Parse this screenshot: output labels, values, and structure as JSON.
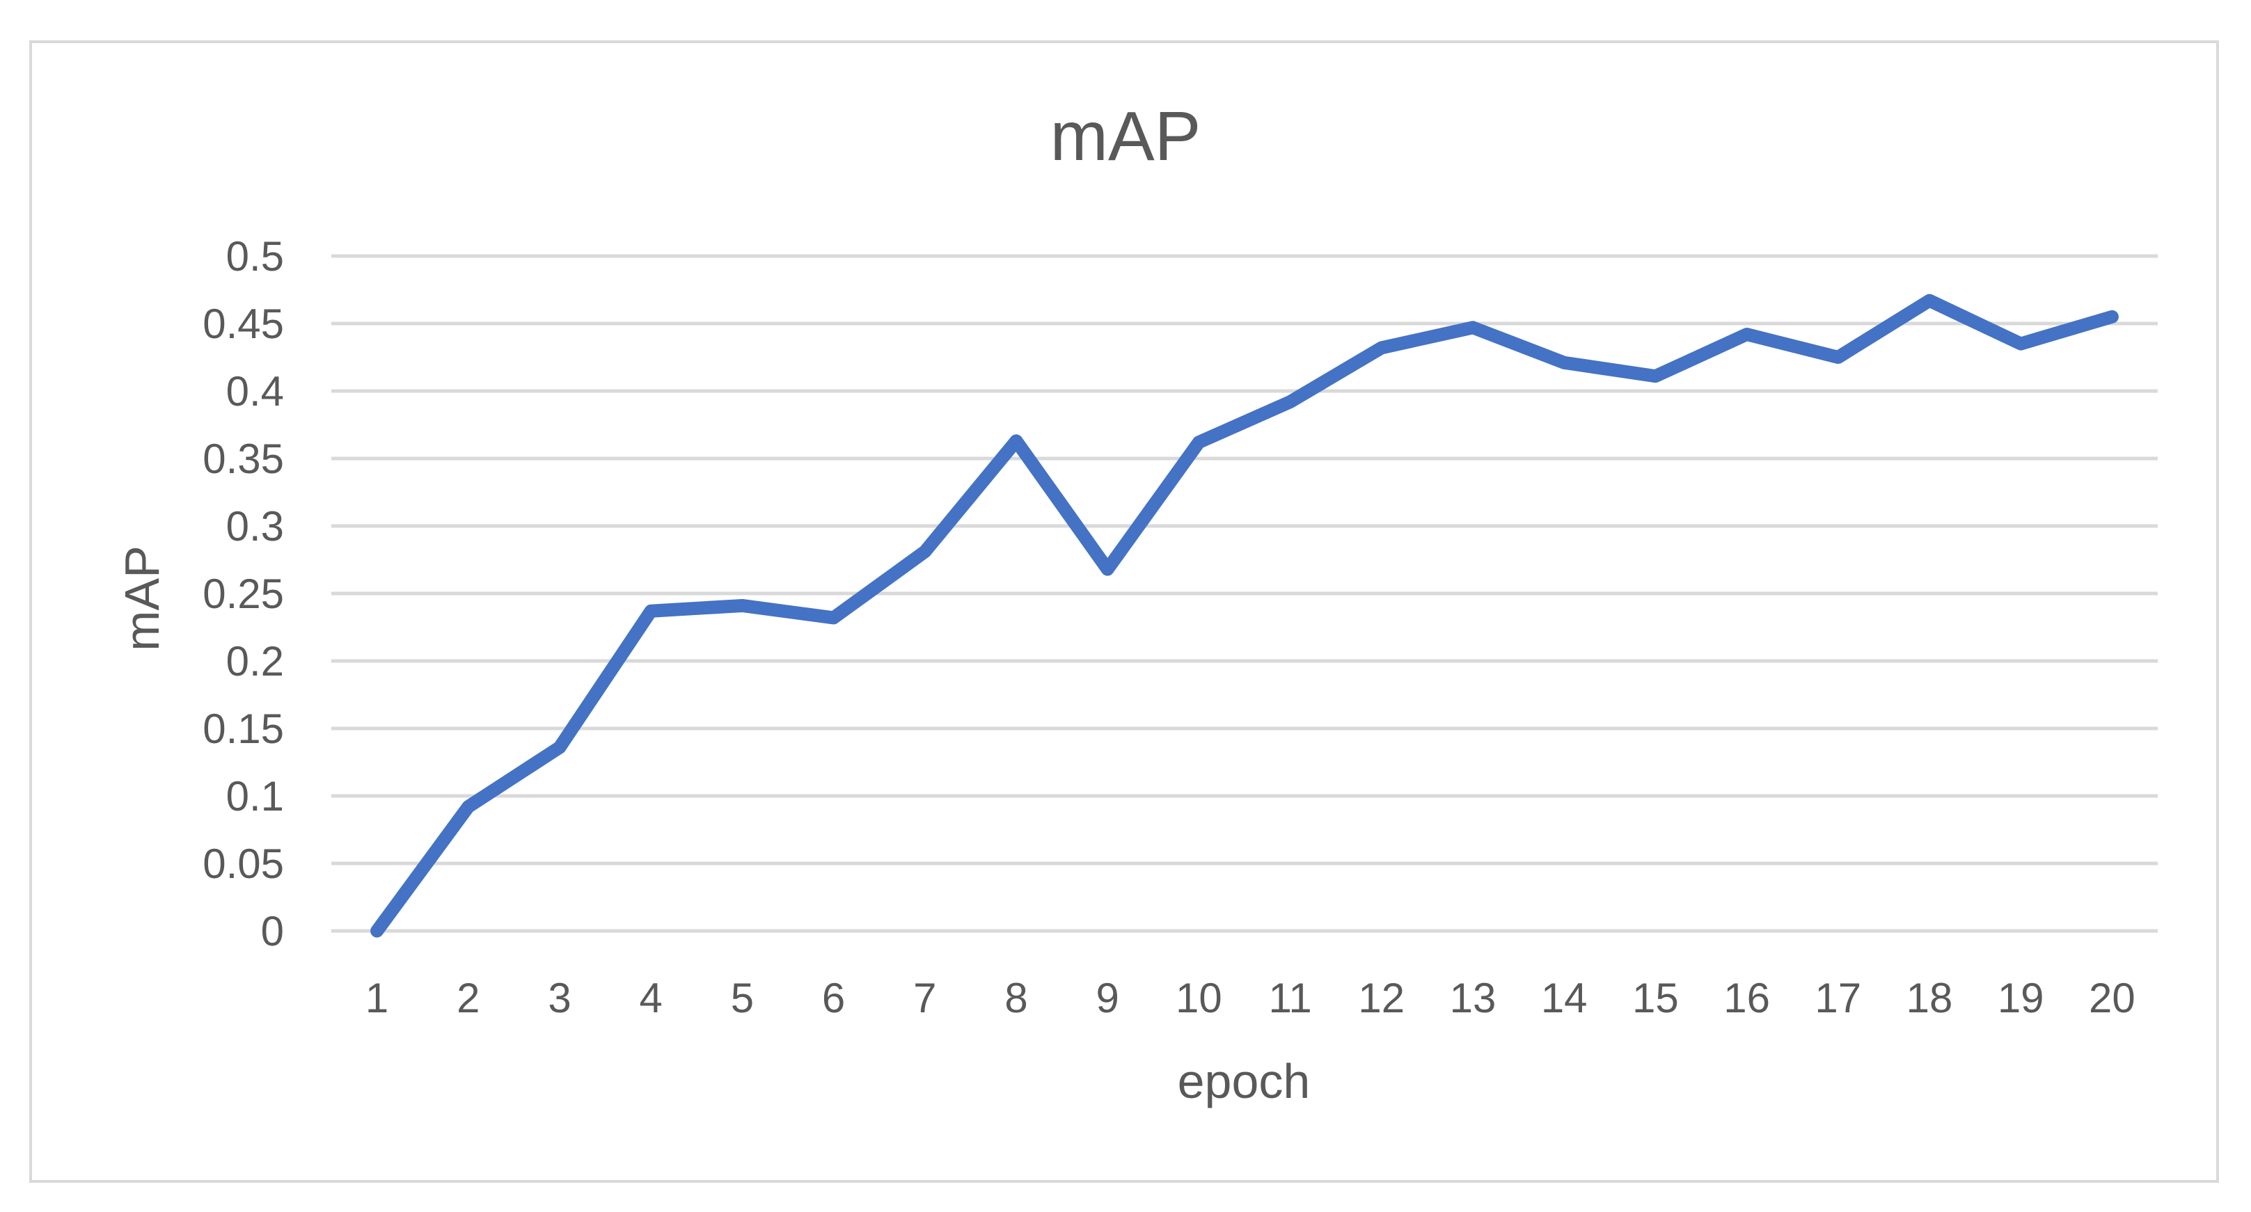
{
  "chart_data": {
    "type": "line",
    "title": "mAP",
    "xlabel": "epoch",
    "ylabel": "mAP",
    "categories": [
      "1",
      "2",
      "3",
      "4",
      "5",
      "6",
      "7",
      "8",
      "9",
      "10",
      "11",
      "12",
      "13",
      "14",
      "15",
      "16",
      "17",
      "18",
      "19",
      "20"
    ],
    "series": [
      {
        "values": [
          0,
          0.092,
          0.136,
          0.237,
          0.241,
          0.232,
          0.281,
          0.363,
          0.268,
          0.362,
          0.392,
          0.432,
          0.447,
          0.421,
          0.411,
          0.442,
          0.425,
          0.467,
          0.435,
          0.455
        ],
        "color": "#4472c4"
      }
    ],
    "ylim": [
      0,
      0.5
    ],
    "yticks": [
      0,
      0.05,
      0.1,
      0.15,
      0.2,
      0.25,
      0.3,
      0.35,
      0.4,
      0.45,
      0.5
    ],
    "ytick_labels": [
      "0",
      "0.05",
      "0.1",
      "0.15",
      "0.2",
      "0.25",
      "0.3",
      "0.35",
      "0.4",
      "0.45",
      "0.5"
    ],
    "grid": true,
    "legend": "none"
  }
}
